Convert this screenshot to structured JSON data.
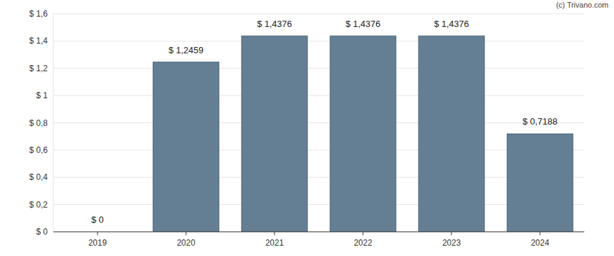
{
  "chart_data": {
    "type": "bar",
    "annotation": "(c) Trivano.com",
    "categories": [
      "2019",
      "2020",
      "2021",
      "2022",
      "2023",
      "2024"
    ],
    "values": [
      0,
      1.2459,
      1.4376,
      1.4376,
      1.4376,
      0.7188
    ],
    "value_labels": [
      "$ 0",
      "$ 1,2459",
      "$ 1,4376",
      "$ 1,4376",
      "$ 1,4376",
      "$ 0,7188"
    ],
    "color": "#647f93",
    "ylim": [
      0,
      1.6
    ],
    "yticks": [
      {
        "value": 0,
        "label": "$ 0"
      },
      {
        "value": 0.2,
        "label": "$ 0,2"
      },
      {
        "value": 0.4,
        "label": "$ 0,4"
      },
      {
        "value": 0.6,
        "label": "$ 0,6"
      },
      {
        "value": 0.8,
        "label": "$ 0,8"
      },
      {
        "value": 1,
        "label": "$ 1"
      },
      {
        "value": 1.2,
        "label": "$ 1,2"
      },
      {
        "value": 1.4,
        "label": "$ 1,4"
      },
      {
        "value": 1.6,
        "label": "$ 1,6"
      }
    ],
    "grid": true,
    "data_labels": true
  }
}
